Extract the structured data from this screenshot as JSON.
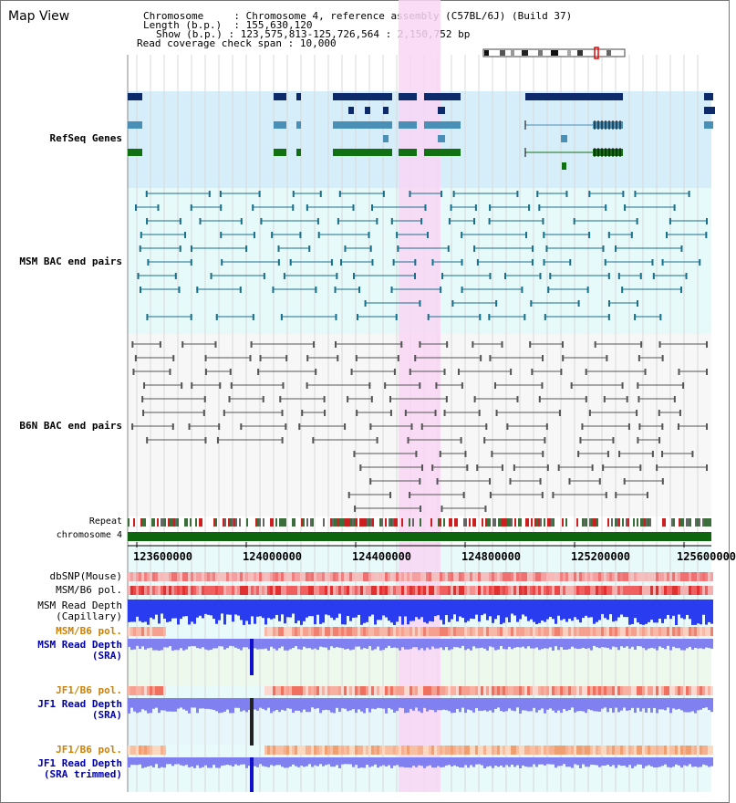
{
  "title": "Map View",
  "info": {
    "chromosome_label": "Chromosome",
    "chromosome_value": "Chromosome 4, reference assembly (C57BL/6J) (Build 37)",
    "length_label": "Length (b.p.)",
    "length_value": "155,630,120",
    "show_label": "Show (b.p.)",
    "show_value": "123,575,813-125,726,564 : 2,150,752 bp",
    "coverage_label": "Read coverage check span",
    "coverage_value": "10,000"
  },
  "tracks": {
    "refseq": "RefSeq Genes",
    "msm_bac": "MSM BAC end pairs",
    "b6n_bac": "B6N BAC end pairs",
    "repeat": "Repeat",
    "chromosome": "chromosome 4",
    "dbsnp": "dbSNP(Mouse)",
    "msm_b6_pol": "MSM/B6 pol.",
    "msm_depth_cap_1": "MSM Read Depth",
    "msm_depth_cap_2": "(Capillary)",
    "msm_b6_pol_2": "MSM/B6 pol.",
    "msm_depth_sra_1": "MSM Read Depth",
    "msm_depth_sra_2": "(SRA)",
    "jf1_b6_pol": "JF1/B6 pol.",
    "jf1_depth_sra_1": "JF1 Read Depth",
    "jf1_depth_sra_2": "(SRA)",
    "jf1_b6_pol_2": "JF1/B6 pol.",
    "jf1_depth_trim_1": "JF1 Read Depth",
    "jf1_depth_trim_2": "(SRA trimmed)"
  },
  "axis": {
    "ticks": [
      "123600000",
      "124000000",
      "124400000",
      "124800000",
      "125200000",
      "125600000"
    ]
  },
  "colors": {
    "refseq_label": "#0000aa",
    "msm_bac_label": "#006a80",
    "b6n_label": "#444444",
    "pol_orange": "#d08000",
    "depth_label": "#0000aa",
    "highlight": "#f9d6f5",
    "refseq_bg": "#d6eefa",
    "msm_bg": "#e6fafa",
    "gene_navy": "#0d2b6b",
    "gene_blue": "#4a8fb5",
    "gene_green": "#117011",
    "bac_teal": "#1a6f8a",
    "depth_blue": "#2a3cf0",
    "depth_light": "#8080f0",
    "chromosome_green": "#0d660d"
  }
}
